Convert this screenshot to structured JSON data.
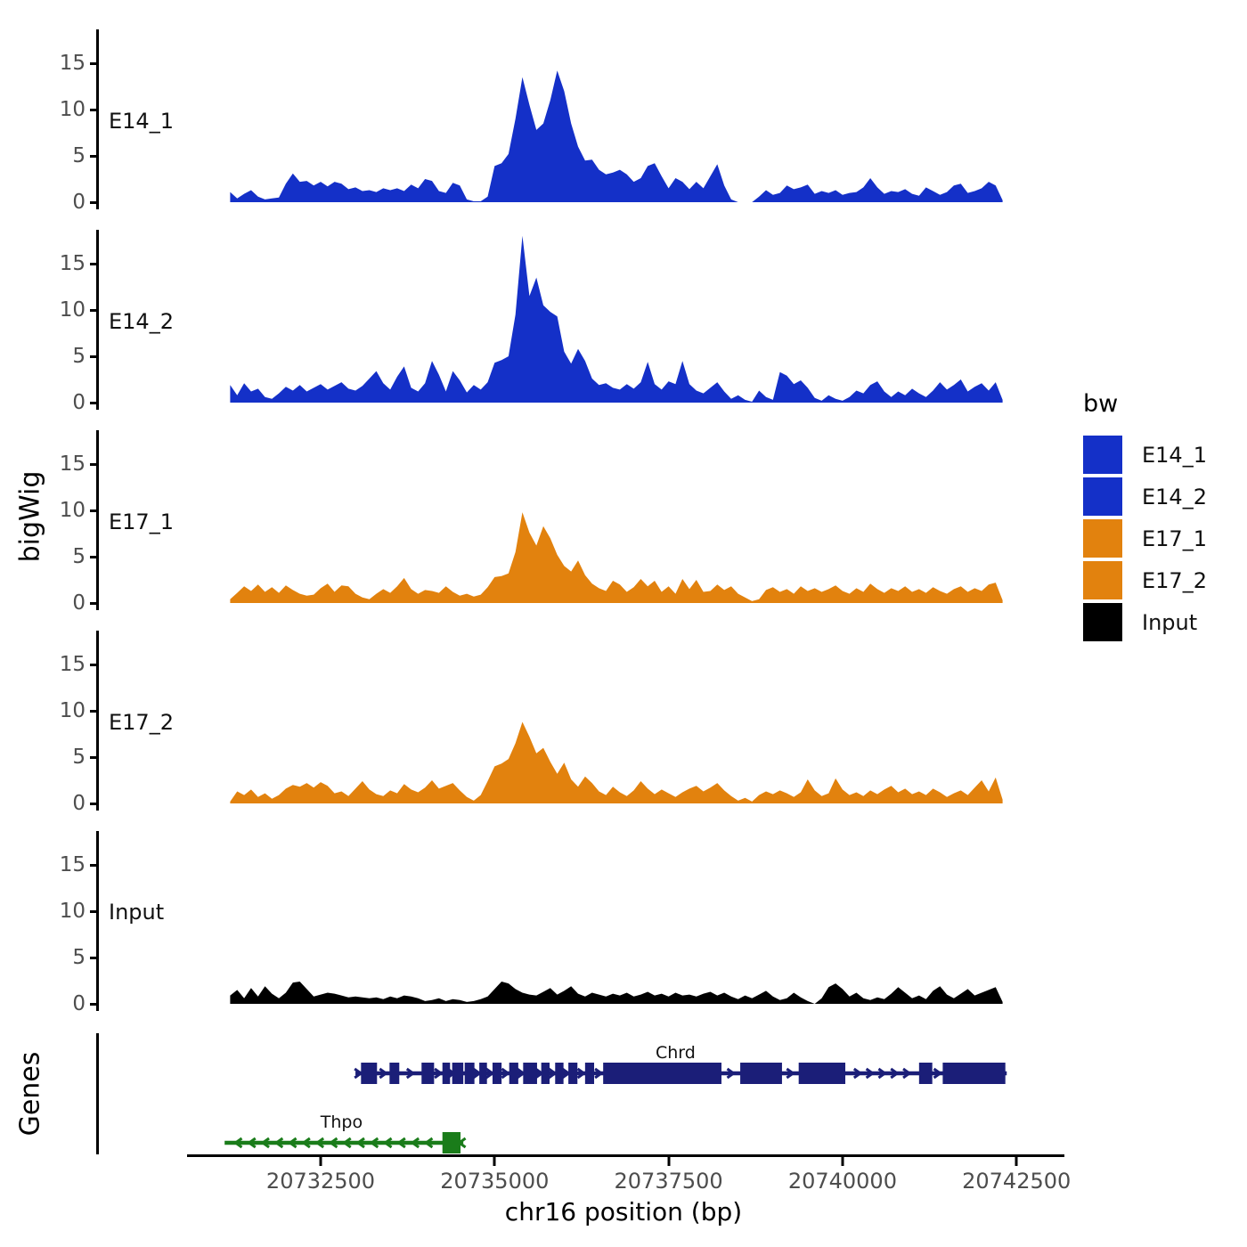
{
  "y_axis": {
    "title": "bigWig",
    "tick_values": [
      0,
      5,
      10,
      15
    ],
    "tick_labels": [
      "0",
      "5",
      "10",
      "15"
    ]
  },
  "genes_panel": {
    "title": "Genes"
  },
  "x_axis": {
    "title": "chr16 position (bp)",
    "tick_values": [
      20732500,
      20735000,
      20737500,
      20740000,
      20742500
    ],
    "tick_labels": [
      "20732500",
      "20735000",
      "20737500",
      "20740000",
      "20742500"
    ]
  },
  "legend": {
    "title": "bw",
    "items": [
      {
        "label": "E14_1",
        "color": "#1430c8"
      },
      {
        "label": "E14_2",
        "color": "#1430c8"
      },
      {
        "label": "E17_1",
        "color": "#e2820e"
      },
      {
        "label": "E17_2",
        "color": "#e2820e"
      },
      {
        "label": "Input",
        "color": "#000000"
      }
    ]
  },
  "chart_data": {
    "type": "area",
    "title": "",
    "xlabel": "chr16 position (bp)",
    "ylabel": "bigWig",
    "xlim": [
      20730800,
      20743100
    ],
    "ylim_per_track": [
      0,
      18.6
    ],
    "x_start": 20731200,
    "x_step": 100,
    "series": [
      {
        "name": "E14_1",
        "color": "#1430c8",
        "values": [
          1.1,
          0.4,
          0.9,
          1.3,
          0.6,
          0.3,
          0.4,
          0.5,
          2.0,
          3.1,
          2.2,
          2.3,
          1.8,
          2.2,
          1.7,
          2.2,
          2.0,
          1.4,
          1.6,
          1.2,
          1.3,
          1.1,
          1.5,
          1.3,
          1.5,
          1.2,
          1.9,
          1.5,
          2.5,
          2.3,
          1.2,
          1.0,
          2.1,
          1.8,
          0.3,
          0.1,
          0.1,
          0.6,
          3.9,
          4.2,
          5.2,
          9.0,
          13.5,
          10.5,
          7.8,
          8.5,
          11.0,
          14.2,
          12.0,
          8.5,
          6.0,
          4.5,
          4.6,
          3.5,
          3.0,
          3.2,
          3.5,
          3.0,
          2.2,
          2.6,
          3.9,
          4.2,
          2.8,
          1.5,
          2.6,
          2.2,
          1.4,
          2.2,
          1.5,
          2.8,
          4.1,
          1.8,
          0.3,
          0,
          0,
          0,
          0.6,
          1.3,
          0.8,
          1.0,
          1.8,
          1.4,
          1.6,
          1.9,
          0.9,
          1.2,
          1.0,
          1.3,
          0.8,
          1.0,
          1.1,
          1.6,
          2.6,
          1.6,
          0.9,
          1.2,
          1.1,
          1.4,
          0.9,
          0.7,
          1.6,
          1.2,
          0.8,
          1.1,
          1.8,
          2.0,
          1.0,
          1.2,
          1.5,
          2.2,
          1.8,
          0.2
        ]
      },
      {
        "name": "E14_2",
        "color": "#1430c8",
        "values": [
          1.9,
          0.8,
          2.1,
          1.2,
          1.5,
          0.6,
          0.4,
          1.0,
          1.7,
          1.3,
          1.9,
          1.2,
          1.6,
          2.0,
          1.4,
          1.8,
          2.2,
          1.5,
          1.3,
          1.8,
          2.6,
          3.4,
          2.1,
          1.4,
          2.8,
          3.9,
          1.6,
          1.2,
          2.1,
          4.5,
          3.0,
          1.2,
          3.4,
          2.4,
          1.1,
          1.9,
          1.4,
          2.2,
          4.3,
          4.6,
          5.0,
          9.5,
          18.0,
          11.5,
          13.5,
          10.5,
          9.8,
          9.3,
          5.5,
          4.2,
          5.8,
          4.5,
          2.6,
          1.9,
          2.1,
          1.6,
          1.4,
          2.0,
          1.5,
          2.2,
          4.4,
          2.0,
          1.4,
          2.3,
          2.0,
          4.5,
          2.0,
          1.3,
          1.0,
          1.6,
          2.2,
          1.2,
          0.4,
          0.8,
          0.3,
          0.1,
          1.3,
          0.6,
          0.3,
          3.3,
          2.9,
          2.0,
          2.4,
          1.6,
          0.5,
          0.2,
          0.8,
          0.4,
          0.2,
          0.6,
          1.3,
          1.0,
          1.9,
          2.3,
          1.2,
          0.6,
          1.2,
          0.8,
          1.5,
          1.0,
          0.6,
          1.3,
          2.2,
          1.4,
          1.9,
          2.5,
          1.2,
          1.7,
          2.1,
          1.3,
          2.2,
          0.3
        ]
      },
      {
        "name": "E17_1",
        "color": "#e2820e",
        "values": [
          0.4,
          1.1,
          1.8,
          1.3,
          2.0,
          1.2,
          1.7,
          1.1,
          1.9,
          1.4,
          1.0,
          0.8,
          0.9,
          1.6,
          2.1,
          1.2,
          1.9,
          1.8,
          1.0,
          0.6,
          0.4,
          1.0,
          1.5,
          1.1,
          1.8,
          2.7,
          1.5,
          1.0,
          1.4,
          1.3,
          1.1,
          1.8,
          1.2,
          0.8,
          1.0,
          0.7,
          0.9,
          1.7,
          2.8,
          2.9,
          3.2,
          5.5,
          9.8,
          7.6,
          6.2,
          8.3,
          7.0,
          5.2,
          4.0,
          3.4,
          4.6,
          3.0,
          2.1,
          1.6,
          1.3,
          2.4,
          2.0,
          1.2,
          1.7,
          2.6,
          1.8,
          2.4,
          1.2,
          1.8,
          1.0,
          2.6,
          1.5,
          2.5,
          1.2,
          1.3,
          2.0,
          1.4,
          1.8,
          1.0,
          0.6,
          0.2,
          0.4,
          1.4,
          1.7,
          1.2,
          1.5,
          1.0,
          1.8,
          1.3,
          1.6,
          1.2,
          1.5,
          1.9,
          1.3,
          1.0,
          1.6,
          1.2,
          2.1,
          1.5,
          1.1,
          1.6,
          1.3,
          1.8,
          1.2,
          1.5,
          1.1,
          1.7,
          1.3,
          1.0,
          1.5,
          1.8,
          1.2,
          1.6,
          1.3,
          2.0,
          2.2,
          0.3
        ]
      },
      {
        "name": "E17_2",
        "color": "#e2820e",
        "values": [
          0.2,
          1.3,
          0.9,
          1.5,
          0.7,
          1.1,
          0.5,
          0.9,
          1.6,
          2.0,
          1.8,
          2.2,
          1.7,
          2.3,
          1.9,
          1.1,
          1.3,
          0.8,
          1.6,
          2.4,
          1.5,
          1.0,
          0.8,
          1.4,
          1.1,
          2.1,
          1.5,
          1.2,
          1.7,
          2.5,
          1.6,
          1.9,
          2.2,
          1.4,
          0.7,
          0.3,
          0.9,
          2.4,
          4.0,
          4.3,
          4.8,
          6.5,
          8.8,
          7.2,
          5.4,
          6.0,
          4.5,
          3.2,
          4.4,
          2.6,
          1.8,
          2.9,
          2.2,
          1.3,
          0.9,
          1.8,
          1.2,
          0.8,
          1.4,
          2.4,
          1.6,
          1.0,
          1.5,
          1.1,
          0.7,
          1.2,
          1.6,
          1.9,
          1.3,
          1.7,
          2.2,
          1.4,
          0.8,
          0.3,
          0.6,
          0.2,
          0.9,
          1.3,
          1.0,
          1.4,
          1.1,
          0.7,
          1.2,
          2.6,
          1.4,
          0.8,
          1.1,
          2.7,
          1.5,
          0.9,
          1.2,
          0.8,
          1.4,
          1.0,
          1.5,
          1.9,
          1.2,
          1.6,
          1.0,
          1.3,
          0.9,
          1.6,
          1.2,
          0.7,
          1.1,
          1.4,
          0.9,
          1.7,
          2.5,
          1.3,
          2.8,
          0.4
        ]
      },
      {
        "name": "Input",
        "color": "#000000",
        "values": [
          0.9,
          1.5,
          0.6,
          1.7,
          0.8,
          1.9,
          1.1,
          0.6,
          1.2,
          2.3,
          2.4,
          1.6,
          0.8,
          1.0,
          1.2,
          1.1,
          0.9,
          0.7,
          0.8,
          0.7,
          0.6,
          0.7,
          0.5,
          0.8,
          0.6,
          0.9,
          0.8,
          0.6,
          0.3,
          0.4,
          0.6,
          0.3,
          0.5,
          0.4,
          0.2,
          0.3,
          0.5,
          0.8,
          1.6,
          2.4,
          2.2,
          1.6,
          1.2,
          1.0,
          0.9,
          1.3,
          1.7,
          1.0,
          1.4,
          1.9,
          1.1,
          0.8,
          1.2,
          1.0,
          0.8,
          1.1,
          0.9,
          1.2,
          0.8,
          1.0,
          1.3,
          0.9,
          1.1,
          0.8,
          1.2,
          0.9,
          1.0,
          0.8,
          1.1,
          1.3,
          0.9,
          1.2,
          0.8,
          0.5,
          0.9,
          0.6,
          1.0,
          1.4,
          0.8,
          0.4,
          0.6,
          1.2,
          0.7,
          0.3,
          0,
          0.6,
          1.8,
          2.2,
          1.6,
          0.8,
          1.2,
          0.6,
          0.4,
          0.7,
          0.5,
          1.1,
          1.8,
          1.2,
          0.6,
          0.9,
          0.5,
          1.4,
          1.9,
          1.0,
          0.6,
          1.1,
          1.6,
          0.9,
          1.2,
          1.5,
          1.8,
          0.2
        ]
      }
    ],
    "genes": [
      {
        "name": "Chrd",
        "strand": "+",
        "color": "#1b1e78",
        "start": 20733000,
        "end": 20742360,
        "label_bp": 20737600,
        "exons": [
          [
            20733080,
            20733310
          ],
          [
            20733490,
            20733630
          ],
          [
            20733950,
            20734130
          ],
          [
            20734250,
            20734360
          ],
          [
            20734390,
            20734550
          ],
          [
            20734570,
            20734710
          ],
          [
            20734780,
            20734890
          ],
          [
            20734970,
            20735100
          ],
          [
            20735210,
            20735340
          ],
          [
            20735410,
            20735610
          ],
          [
            20735670,
            20735790
          ],
          [
            20735870,
            20735990
          ],
          [
            20736060,
            20736190
          ],
          [
            20736300,
            20736430
          ],
          [
            20736560,
            20738260
          ],
          [
            20738530,
            20739130
          ],
          [
            20739370,
            20740040
          ],
          [
            20741100,
            20741290
          ],
          [
            20741440,
            20742340
          ]
        ]
      },
      {
        "name": "Thpo",
        "strand": "-",
        "color": "#1a7c1a",
        "start": 20731120,
        "end": 20734550,
        "label_bp": 20732800,
        "exons": [
          [
            20734250,
            20734510
          ]
        ]
      }
    ]
  }
}
